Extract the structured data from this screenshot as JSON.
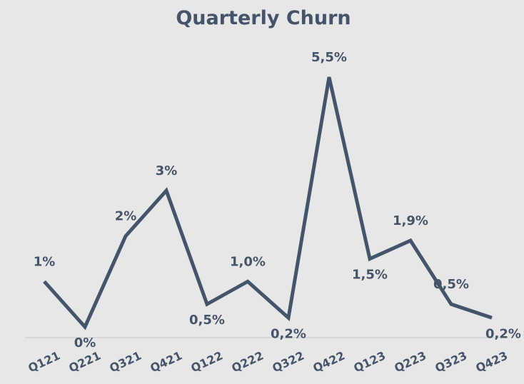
{
  "chart_data": {
    "type": "line",
    "title": "Quarterly Churn",
    "categories": [
      "Q121",
      "Q221",
      "Q321",
      "Q421",
      "Q122",
      "Q222",
      "Q322",
      "Q422",
      "Q123",
      "Q223",
      "Q323",
      "Q423"
    ],
    "series": [
      {
        "color": "#44546a",
        "values": [
          1,
          0,
          2,
          3,
          0.5,
          1.0,
          0.2,
          5.5,
          1.5,
          1.9,
          0.5,
          0.2
        ],
        "value_labels": [
          "1%",
          "0%",
          "2%",
          "3%",
          "0,5%",
          "1,0%",
          "0,2%",
          "5,5%",
          "1,5%",
          "1,9%",
          "0,5%",
          "0,2%"
        ]
      }
    ]
  }
}
